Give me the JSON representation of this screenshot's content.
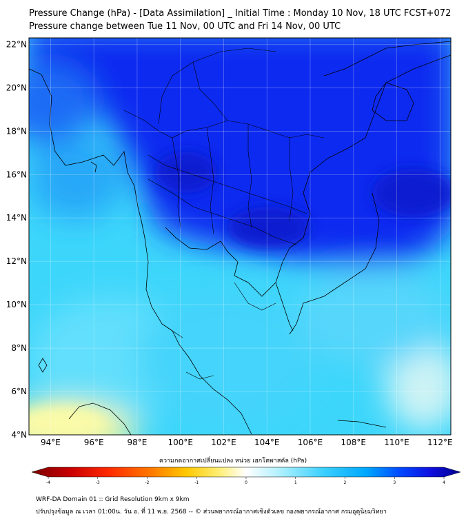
{
  "header": {
    "title_line1": "Pressure Change (hPa) - [Data Assimilation] _ Initial Time : Monday 10 Nov, 18 UTC FCST+072",
    "title_line2": "Pressure change between Tue 11 Nov, 00 UTC and Fri 14 Nov, 00 UTC"
  },
  "map": {
    "lat_labels": [
      "22°N",
      "20°N",
      "18°N",
      "16°N",
      "14°N",
      "12°N",
      "10°N",
      "8°N",
      "6°N",
      "4°N"
    ],
    "lon_labels": [
      "94°E",
      "96°E",
      "98°E",
      "100°E",
      "102°E",
      "104°E",
      "106°E",
      "108°E",
      "110°E",
      "112°E"
    ],
    "lat_values": [
      22,
      20,
      18,
      16,
      14,
      12,
      10,
      8,
      6,
      4
    ],
    "lon_values": [
      94,
      96,
      98,
      100,
      102,
      104,
      106,
      108,
      110,
      112
    ],
    "extent": {
      "lon_min": 93,
      "lon_max": 112.5,
      "lat_min": 4,
      "lat_max": 22.3
    }
  },
  "colorbar": {
    "label": "ความกดอากาศเปลี่ยนแปลง หน่วย เฮกโตพาสคัล (hPa)",
    "tick_labels": [
      "-4",
      "-3",
      "-2",
      "-1",
      "0",
      "1",
      "2",
      "3",
      "4"
    ],
    "tick_values": [
      -4,
      -3,
      -2,
      -1,
      0,
      1,
      2,
      3,
      4
    ],
    "range": [
      -4,
      4
    ],
    "colors": [
      "#7a0000",
      "#c80000",
      "#ff2a00",
      "#ff7a00",
      "#ffc800",
      "#fff07a",
      "#ffffff",
      "#aef0ff",
      "#3cd0ff",
      "#00a8ff",
      "#0048ff",
      "#1010e0",
      "#000090"
    ]
  },
  "footer": {
    "line1": "WRF-DA Domain 01 :: Grid Resolution 9km x 9km",
    "line2": "ปรับปรุงข้อมูล ณ เวลา 01:00น. วัน อ. ที่ 11 พ.ย. 2568 -- © ส่วนพยากรณ์อากาศเชิงตัวเลข กองพยากรณ์อากาศ กรมอุตุนิยมวิทยา"
  }
}
